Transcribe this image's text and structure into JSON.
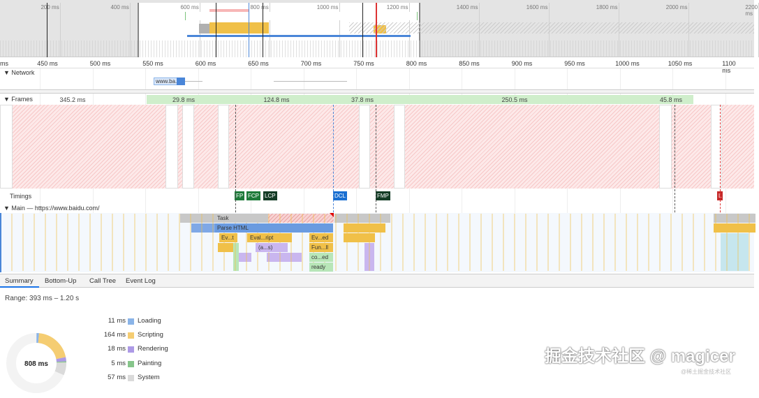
{
  "overview": {
    "ticks": [
      "200 ms",
      "400 ms",
      "600 ms",
      "800 ms",
      "1000 ms",
      "1200 ms",
      "1400 ms",
      "1600 ms",
      "1800 ms",
      "2000 ms",
      "2200 ms"
    ]
  },
  "ruler": {
    "ticks": [
      "ms",
      "450 ms",
      "500 ms",
      "550 ms",
      "600 ms",
      "650 ms",
      "700 ms",
      "750 ms",
      "800 ms",
      "850 ms",
      "900 ms",
      "950 ms",
      "1000 ms",
      "1050 ms",
      "1100 ms"
    ]
  },
  "network": {
    "label": "Network",
    "request": "www.ba..."
  },
  "frames": {
    "label": "Frames",
    "durations": [
      "345.2 ms",
      "29.8 ms",
      "124.8 ms",
      "37.8 ms",
      "250.5 ms",
      "45.8 ms"
    ]
  },
  "timings": {
    "label": "Timings",
    "markers": [
      {
        "label": "FP",
        "color": "#1e7a3a"
      },
      {
        "label": "FCP",
        "color": "#1e7a3a"
      },
      {
        "label": "LCP",
        "color": "#143c26"
      },
      {
        "label": "DCL",
        "color": "#1a6fd1"
      },
      {
        "label": "FMP",
        "color": "#143c26"
      },
      {
        "label": "L",
        "color": "#c62828"
      }
    ]
  },
  "main": {
    "label": "Main — https://www.baidu.com/",
    "blocks": [
      "Task",
      "Parse HTML",
      "Ev...t",
      "Eval...ript",
      "Ev...ed",
      "(a...s)",
      "Fun...ll",
      "co...ed",
      "ready"
    ]
  },
  "tabs": [
    "Summary",
    "Bottom-Up",
    "Call Tree",
    "Event Log"
  ],
  "summary": {
    "range": "Range: 393 ms – 1.20 s",
    "total": "808 ms",
    "total_ms": 808,
    "categories": [
      {
        "value": "11 ms",
        "ms": 11,
        "label": "Loading",
        "color": "#8ab4e8"
      },
      {
        "value": "164 ms",
        "ms": 164,
        "label": "Scripting",
        "color": "#f5cd72"
      },
      {
        "value": "18 ms",
        "ms": 18,
        "label": "Rendering",
        "color": "#ad9ae6"
      },
      {
        "value": "5 ms",
        "ms": 5,
        "label": "Painting",
        "color": "#86c58a"
      },
      {
        "value": "57 ms",
        "ms": 57,
        "label": "System",
        "color": "#dadada"
      }
    ]
  },
  "watermark": {
    "main": "掘金技术社区 @ magicer",
    "small": "@稀土掘金技术社区"
  }
}
